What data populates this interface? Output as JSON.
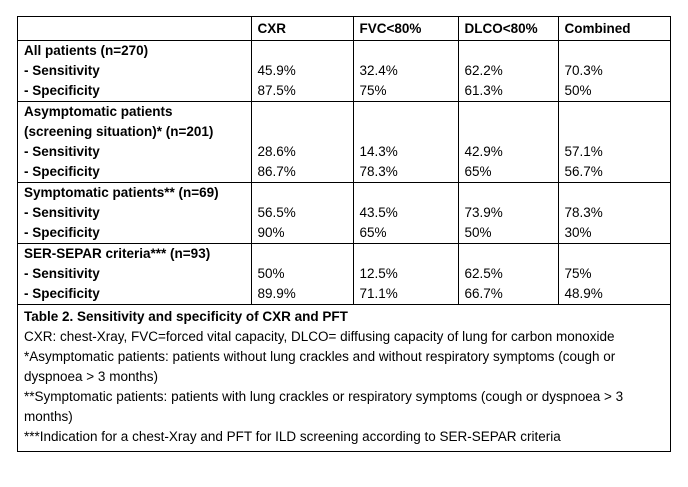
{
  "table": {
    "header": [
      "CXR",
      "FVC<80%",
      "DLCO<80%",
      "Combined"
    ],
    "groups": [
      {
        "title": "All patients (n=270)",
        "rows": [
          {
            "label": "- Sensitivity",
            "values": [
              "45.9%",
              "32.4%",
              "62.2%",
              "70.3%"
            ]
          },
          {
            "label": "- Specificity",
            "values": [
              "87.5%",
              "75%",
              "61.3%",
              "50%"
            ]
          }
        ]
      },
      {
        "title": "Asymptomatic patients (screening situation)* (n=201)",
        "rows": [
          {
            "label": "- Sensitivity",
            "values": [
              "28.6%",
              "14.3%",
              "42.9%",
              "57.1%"
            ]
          },
          {
            "label": "- Specificity",
            "values": [
              "86.7%",
              "78.3%",
              "65%",
              "56.7%"
            ]
          }
        ]
      },
      {
        "title": "Symptomatic patients** (n=69)",
        "rows": [
          {
            "label": "- Sensitivity",
            "values": [
              "56.5%",
              "43.5%",
              "73.9%",
              "78.3%"
            ]
          },
          {
            "label": "- Specificity",
            "values": [
              "90%",
              "65%",
              "50%",
              "30%"
            ]
          }
        ]
      },
      {
        "title": "SER-SEPAR criteria*** (n=93)",
        "rows": [
          {
            "label": "- Sensitivity",
            "values": [
              "50%",
              "12.5%",
              "62.5%",
              "75%"
            ]
          },
          {
            "label": "- Specificity",
            "values": [
              "89.9%",
              "71.1%",
              "66.7%",
              "48.9%"
            ]
          }
        ]
      }
    ]
  },
  "caption": {
    "title": "Table 2. Sensitivity and specificity of CXR and PFT",
    "notes": [
      "CXR: chest-Xray, FVC=forced vital capacity, DLCO= diffusing capacity of lung for carbon monoxide",
      "*Asymptomatic patients: patients without lung crackles and without respiratory symptoms (cough or dyspnoea > 3 months)",
      "**Symptomatic patients: patients with lung crackles or respiratory symptoms (cough or dyspnoea > 3 months)",
      "***Indication for a chest-Xray and PFT for ILD screening according to SER-SEPAR criteria"
    ]
  }
}
